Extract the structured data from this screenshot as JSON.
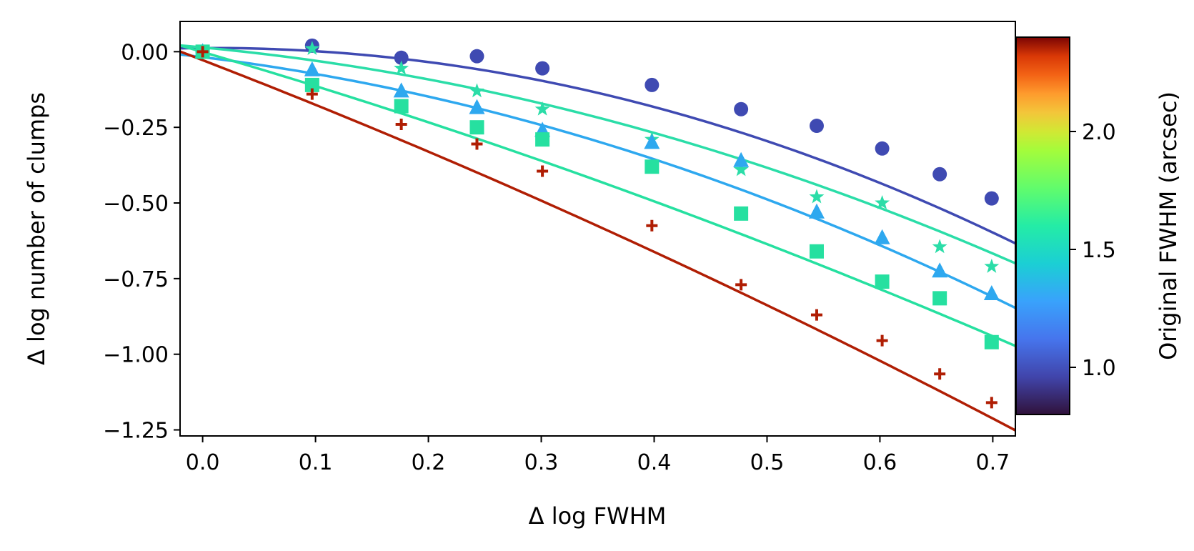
{
  "chart_data": {
    "type": "scatter",
    "title": "",
    "xlabel": "Δ log FWHM",
    "ylabel": "Δ log number of clumps",
    "xlim": [
      -0.02,
      0.72
    ],
    "ylim": [
      -1.27,
      0.1
    ],
    "xticks": [
      "0.0",
      "0.1",
      "0.2",
      "0.3",
      "0.4",
      "0.5",
      "0.6",
      "0.7"
    ],
    "yticks": [
      "0.00",
      "−0.25",
      "−0.50",
      "−0.75",
      "−1.00",
      "−1.25"
    ],
    "grid": false,
    "colorbar": {
      "label": "Original FWHM (arcsec)",
      "range": [
        0.8,
        2.4
      ],
      "ticks": [
        "1.0",
        "1.5",
        "2.0"
      ]
    },
    "series": [
      {
        "name": "circle",
        "marker": "circle",
        "color": "#3f4ab2",
        "x": [
          0.0,
          0.097,
          0.176,
          0.243,
          0.301,
          0.398,
          0.477,
          0.544,
          0.602,
          0.653,
          0.699
        ],
        "y": [
          0.0,
          0.02,
          -0.02,
          -0.015,
          -0.055,
          -0.11,
          -0.19,
          -0.245,
          -0.32,
          -0.405,
          -0.485
        ],
        "fit": [
          0.012,
          0.025,
          -1.28
        ]
      },
      {
        "name": "star",
        "marker": "star",
        "color": "#2bdda8",
        "x": [
          0.0,
          0.097,
          0.176,
          0.243,
          0.301,
          0.398,
          0.477,
          0.544,
          0.602,
          0.653,
          0.699
        ],
        "y": [
          0.0,
          0.01,
          -0.055,
          -0.13,
          -0.19,
          -0.29,
          -0.39,
          -0.48,
          -0.5,
          -0.645,
          -0.71
        ],
        "fit": [
          0.014,
          -0.35,
          -0.89
        ]
      },
      {
        "name": "triangle",
        "marker": "triangle",
        "color": "#2ea8ef",
        "x": [
          0.0,
          0.097,
          0.176,
          0.243,
          0.301,
          0.398,
          0.477,
          0.544,
          0.602,
          0.653,
          0.699
        ],
        "y": [
          0.0,
          -0.06,
          -0.13,
          -0.185,
          -0.26,
          -0.3,
          -0.36,
          -0.53,
          -0.615,
          -0.725,
          -0.8
        ],
        "fit": [
          -0.018,
          -0.46,
          -0.96
        ]
      },
      {
        "name": "square",
        "marker": "square",
        "color": "#26e0a0",
        "x": [
          0.0,
          0.097,
          0.176,
          0.243,
          0.301,
          0.398,
          0.477,
          0.544,
          0.602,
          0.653,
          0.699
        ],
        "y": [
          0.0,
          -0.11,
          -0.18,
          -0.25,
          -0.29,
          -0.38,
          -0.535,
          -0.66,
          -0.76,
          -0.815,
          -0.96
        ],
        "fit": [
          -0.001,
          -1.09,
          -0.36
        ]
      },
      {
        "name": "plus",
        "marker": "plus",
        "color": "#b01e04",
        "x": [
          0.0,
          0.097,
          0.176,
          0.243,
          0.301,
          0.398,
          0.477,
          0.544,
          0.602,
          0.653,
          0.699
        ],
        "y": [
          0.0,
          -0.14,
          -0.24,
          -0.305,
          -0.395,
          -0.575,
          -0.77,
          -0.87,
          -0.955,
          -1.065,
          -1.16
        ],
        "fit": [
          -0.028,
          -1.44,
          -0.36
        ]
      }
    ]
  }
}
